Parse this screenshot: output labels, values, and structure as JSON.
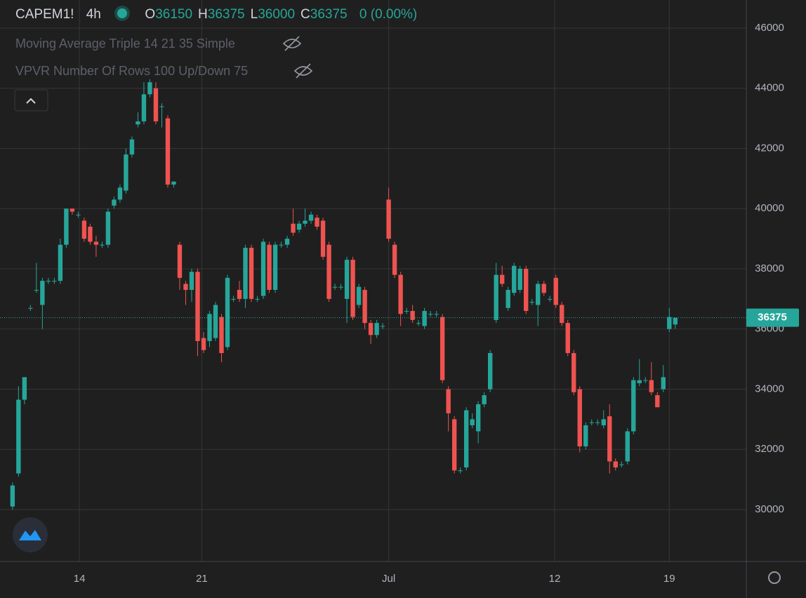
{
  "header": {
    "symbol": "CAPEM1!",
    "interval": "4h",
    "ohlc": [
      {
        "label": "O",
        "value": 36150
      },
      {
        "label": "H",
        "value": 36375
      },
      {
        "label": "L",
        "value": 36000
      },
      {
        "label": "C",
        "value": 36375
      }
    ],
    "change": "0 (0.00%)",
    "indicators": [
      "Moving Average Triple 14 21 35 Simple",
      "VPVR Number Of Rows 100 Up/Down 75"
    ]
  },
  "chart_data": {
    "type": "candlestick",
    "up_color": "#26a69a",
    "down_color": "#ef5350",
    "grid": true,
    "ylim": [
      28274,
      46933
    ],
    "yticks": [
      30000,
      32000,
      34000,
      36000,
      38000,
      40000,
      42000,
      44000,
      46000
    ],
    "xlim": [
      -2.1,
      122.9
    ],
    "xticks": [
      {
        "value": 11.2,
        "label": "14"
      },
      {
        "value": 31.7,
        "label": "21"
      },
      {
        "value": 63.0,
        "label": "Jul"
      },
      {
        "value": 90.8,
        "label": "12"
      },
      {
        "value": 110.0,
        "label": "19"
      }
    ],
    "last_price": 36375,
    "candles": [
      [
        30100,
        30900,
        30000,
        30800
      ],
      [
        31200,
        34100,
        31100,
        33650
      ],
      [
        33650,
        34400,
        33500,
        34400
      ],
      [
        36700,
        36800,
        36600,
        36700
      ],
      [
        37300,
        38200,
        37200,
        37300
      ],
      [
        36800,
        37700,
        36000,
        37600
      ],
      [
        37600,
        37700,
        37500,
        37600
      ],
      [
        37600,
        37700,
        37500,
        37600
      ],
      [
        37600,
        39000,
        37500,
        38800
      ],
      [
        38800,
        40000,
        38700,
        40000
      ],
      [
        40000,
        40000,
        39800,
        39900
      ],
      [
        39800,
        39900,
        39700,
        39800
      ],
      [
        39600,
        39700,
        38900,
        39000
      ],
      [
        39400,
        39500,
        38800,
        38900
      ],
      [
        38900,
        39100,
        38400,
        38800
      ],
      [
        38800,
        38900,
        38700,
        38800
      ],
      [
        38800,
        40000,
        38700,
        39900
      ],
      [
        40100,
        40400,
        40000,
        40300
      ],
      [
        40300,
        40800,
        40200,
        40700
      ],
      [
        40600,
        42000,
        40500,
        41800
      ],
      [
        41800,
        42400,
        41700,
        42300
      ],
      [
        42800,
        43200,
        42700,
        42900
      ],
      [
        42900,
        44200,
        42800,
        43800
      ],
      [
        43800,
        44300,
        43700,
        44200
      ],
      [
        44000,
        44200,
        42800,
        42900
      ],
      [
        43400,
        43500,
        42700,
        43400
      ],
      [
        43000,
        43100,
        40700,
        40800
      ],
      [
        40800,
        40900,
        40700,
        40900
      ],
      [
        38800,
        38900,
        37300,
        37700
      ],
      [
        37500,
        37600,
        36800,
        37300
      ],
      [
        37300,
        38000,
        36900,
        37900
      ],
      [
        37900,
        38000,
        35100,
        35600
      ],
      [
        35700,
        35900,
        35200,
        35300
      ],
      [
        35600,
        36600,
        35400,
        36500
      ],
      [
        35700,
        36900,
        35600,
        36800
      ],
      [
        36400,
        36500,
        34900,
        35200
      ],
      [
        35400,
        37800,
        35300,
        37700
      ],
      [
        37000,
        37100,
        36900,
        37000
      ],
      [
        37300,
        37600,
        36900,
        37000
      ],
      [
        37000,
        38800,
        36700,
        38700
      ],
      [
        38700,
        38800,
        36900,
        37000
      ],
      [
        37000,
        37100,
        36900,
        37000
      ],
      [
        37100,
        39000,
        37000,
        38900
      ],
      [
        38800,
        38900,
        37200,
        37300
      ],
      [
        37300,
        38900,
        37200,
        38800
      ],
      [
        38800,
        38900,
        38700,
        38800
      ],
      [
        38800,
        39100,
        38700,
        39000
      ],
      [
        39500,
        40000,
        39100,
        39200
      ],
      [
        39300,
        39600,
        39200,
        39500
      ],
      [
        39500,
        40000,
        39400,
        39600
      ],
      [
        39600,
        39900,
        39500,
        39800
      ],
      [
        39700,
        39800,
        39300,
        39400
      ],
      [
        39600,
        39700,
        38300,
        38400
      ],
      [
        38800,
        38900,
        36900,
        37000
      ],
      [
        37400,
        37500,
        37300,
        37400
      ],
      [
        37400,
        37500,
        37300,
        37400
      ],
      [
        37000,
        38400,
        36200,
        38300
      ],
      [
        38300,
        38400,
        36300,
        36400
      ],
      [
        36800,
        37500,
        36700,
        37400
      ],
      [
        37300,
        37400,
        36000,
        36200
      ],
      [
        36200,
        36300,
        35500,
        35800
      ],
      [
        35800,
        36300,
        35700,
        36200
      ],
      [
        36100,
        36200,
        36000,
        36100
      ],
      [
        40300,
        40700,
        38900,
        39000
      ],
      [
        38800,
        38900,
        37700,
        37800
      ],
      [
        37800,
        37900,
        36100,
        36500
      ],
      [
        36600,
        36700,
        36500,
        36600
      ],
      [
        36600,
        36800,
        36200,
        36300
      ],
      [
        36200,
        36300,
        36100,
        36200
      ],
      [
        36100,
        36700,
        36000,
        36600
      ],
      [
        36500,
        36600,
        36400,
        36500
      ],
      [
        36500,
        36600,
        36400,
        36500
      ],
      [
        36400,
        36500,
        34200,
        34300
      ],
      [
        34000,
        34100,
        32600,
        33200
      ],
      [
        33000,
        33100,
        31200,
        31300
      ],
      [
        31300,
        31400,
        31200,
        31300
      ],
      [
        31400,
        33400,
        31300,
        33300
      ],
      [
        32800,
        33200,
        32700,
        33000
      ],
      [
        32600,
        33600,
        32200,
        33500
      ],
      [
        33500,
        33900,
        33400,
        33800
      ],
      [
        34000,
        35300,
        33900,
        35200
      ],
      [
        36300,
        38200,
        36200,
        37800
      ],
      [
        37800,
        38100,
        37400,
        37500
      ],
      [
        36700,
        37400,
        36600,
        37300
      ],
      [
        37200,
        38200,
        37100,
        38100
      ],
      [
        37300,
        38100,
        37200,
        38000
      ],
      [
        38000,
        38100,
        36500,
        36600
      ],
      [
        36900,
        37000,
        36800,
        36900
      ],
      [
        36800,
        37600,
        36100,
        37500
      ],
      [
        37500,
        37600,
        37100,
        37200
      ],
      [
        37000,
        37100,
        36900,
        37000
      ],
      [
        37700,
        37800,
        36700,
        36800
      ],
      [
        36800,
        36900,
        36100,
        36200
      ],
      [
        36200,
        36300,
        35100,
        35200
      ],
      [
        35200,
        35300,
        33800,
        33900
      ],
      [
        34000,
        34100,
        31900,
        32100
      ],
      [
        32100,
        32900,
        32000,
        32800
      ],
      [
        32900,
        33000,
        32800,
        32900
      ],
      [
        32900,
        33000,
        32800,
        32900
      ],
      [
        32800,
        33300,
        32700,
        33000
      ],
      [
        33100,
        33500,
        31200,
        31600
      ],
      [
        31600,
        31700,
        31300,
        31400
      ],
      [
        31500,
        31600,
        31400,
        31500
      ],
      [
        31600,
        32700,
        31500,
        32600
      ],
      [
        32600,
        34400,
        32500,
        34300
      ],
      [
        34200,
        35000,
        34100,
        34300
      ],
      [
        34300,
        34400,
        34200,
        34300
      ],
      [
        34300,
        34900,
        33800,
        33900
      ],
      [
        33800,
        33900,
        33400,
        33400
      ],
      [
        34000,
        34800,
        33900,
        34400
      ],
      [
        36000,
        36700,
        35900,
        36400
      ],
      [
        36150,
        36375,
        36000,
        36375
      ]
    ]
  }
}
